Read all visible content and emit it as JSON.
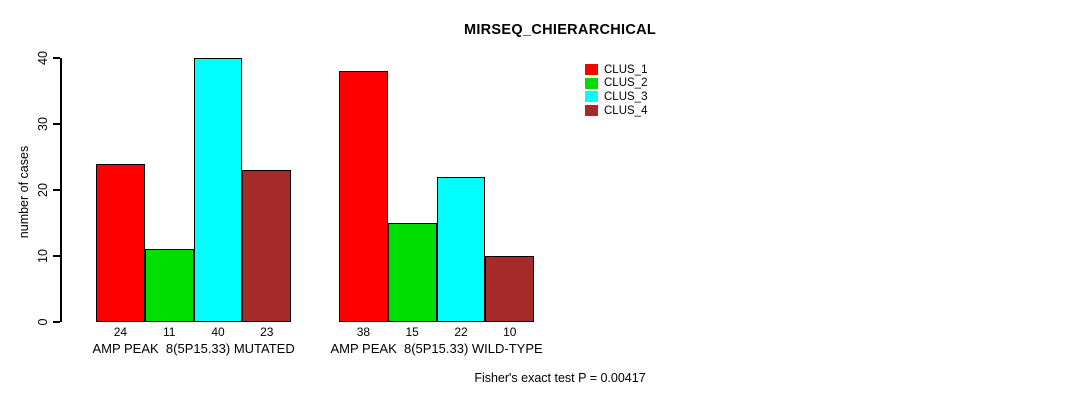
{
  "chart_data": {
    "type": "bar",
    "title": "MIRSEQ_CHIERARCHICAL",
    "ylabel": "number of cases",
    "xlabel": "",
    "ylim": [
      0,
      40
    ],
    "yticks": [
      0,
      10,
      20,
      30,
      40
    ],
    "grid": false,
    "legend_position": "top-right",
    "categories": [
      "AMP PEAK  8(5P15.33) MUTATED",
      "AMP PEAK  8(5P15.33) WILD-TYPE"
    ],
    "series": [
      {
        "name": "CLUS_1",
        "color": "#FF0000",
        "values": [
          24,
          38
        ]
      },
      {
        "name": "CLUS_2",
        "color": "#00DD00",
        "values": [
          11,
          15
        ]
      },
      {
        "name": "CLUS_3",
        "color": "#00FFFF",
        "values": [
          40,
          22
        ]
      },
      {
        "name": "CLUS_4",
        "color": "#A52A2A",
        "values": [
          23,
          10
        ]
      }
    ],
    "bar_value_labels": [
      [
        24,
        11,
        40,
        23
      ],
      [
        38,
        15,
        22,
        10
      ]
    ],
    "footnote": "Fisher's exact test P = 0.00417"
  }
}
